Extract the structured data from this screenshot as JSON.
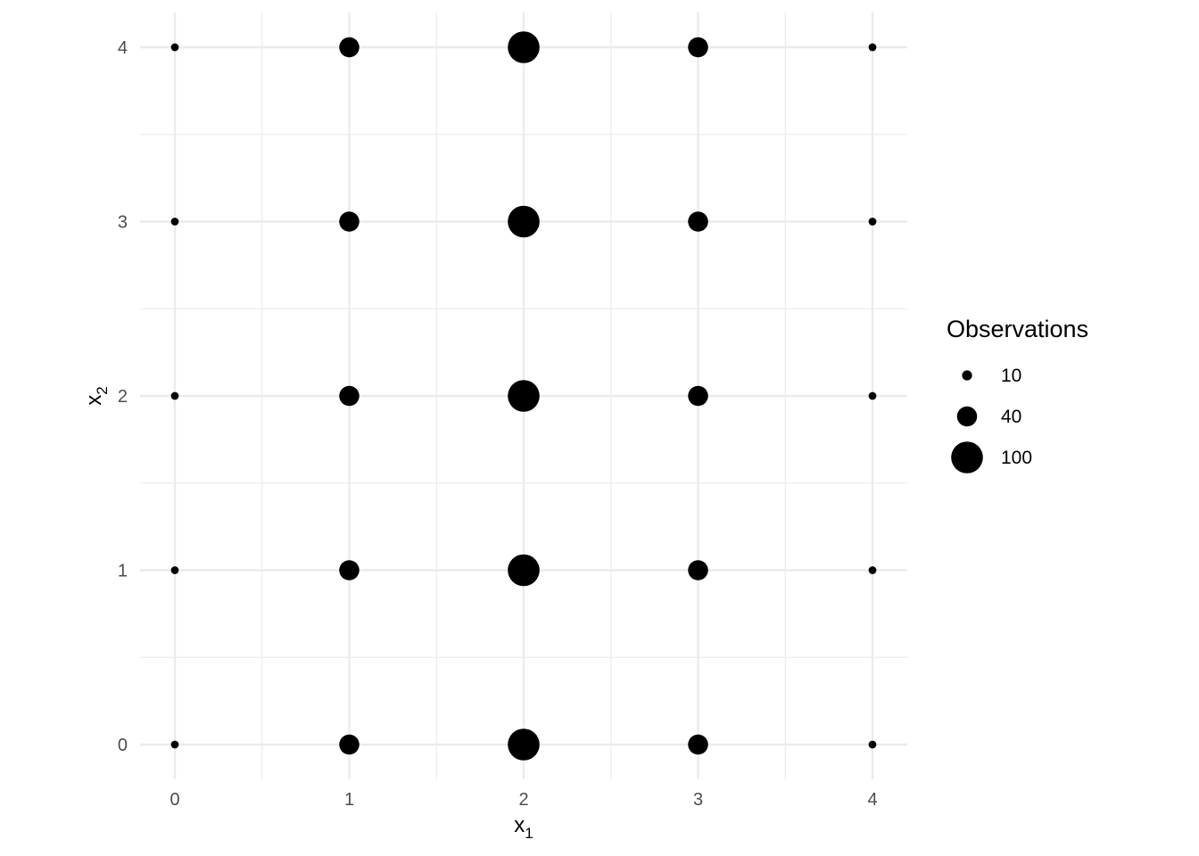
{
  "chart_data": {
    "type": "scatter",
    "xlabel": {
      "base": "x",
      "sub": "1"
    },
    "ylabel": {
      "base": "x",
      "sub": "2"
    },
    "xlim": [
      -0.2,
      4.2
    ],
    "ylim": [
      -0.2,
      4.2
    ],
    "x_ticks": [
      "0",
      "1",
      "2",
      "3",
      "4"
    ],
    "y_ticks": [
      "0",
      "1",
      "2",
      "3",
      "4"
    ],
    "grid": true,
    "size_legend": {
      "title": "Observations",
      "entries": [
        {
          "label": "10",
          "value": 10
        },
        {
          "label": "40",
          "value": 40
        },
        {
          "label": "100",
          "value": 100
        }
      ],
      "placement": "right"
    },
    "point_color": "#000000",
    "points": [
      {
        "x": 0,
        "y": 0,
        "size": 6
      },
      {
        "x": 1,
        "y": 0,
        "size": 40
      },
      {
        "x": 2,
        "y": 0,
        "size": 100
      },
      {
        "x": 3,
        "y": 0,
        "size": 40
      },
      {
        "x": 4,
        "y": 0,
        "size": 6
      },
      {
        "x": 0,
        "y": 1,
        "size": 6
      },
      {
        "x": 1,
        "y": 1,
        "size": 40
      },
      {
        "x": 2,
        "y": 1,
        "size": 100
      },
      {
        "x": 3,
        "y": 1,
        "size": 40
      },
      {
        "x": 4,
        "y": 1,
        "size": 6
      },
      {
        "x": 0,
        "y": 2,
        "size": 6
      },
      {
        "x": 1,
        "y": 2,
        "size": 40
      },
      {
        "x": 2,
        "y": 2,
        "size": 100
      },
      {
        "x": 3,
        "y": 2,
        "size": 40
      },
      {
        "x": 4,
        "y": 2,
        "size": 6
      },
      {
        "x": 0,
        "y": 3,
        "size": 6
      },
      {
        "x": 1,
        "y": 3,
        "size": 40
      },
      {
        "x": 2,
        "y": 3,
        "size": 100
      },
      {
        "x": 3,
        "y": 3,
        "size": 40
      },
      {
        "x": 4,
        "y": 3,
        "size": 6
      },
      {
        "x": 0,
        "y": 4,
        "size": 6
      },
      {
        "x": 1,
        "y": 4,
        "size": 40
      },
      {
        "x": 2,
        "y": 4,
        "size": 100
      },
      {
        "x": 3,
        "y": 4,
        "size": 40
      },
      {
        "x": 4,
        "y": 4,
        "size": 6
      }
    ]
  }
}
